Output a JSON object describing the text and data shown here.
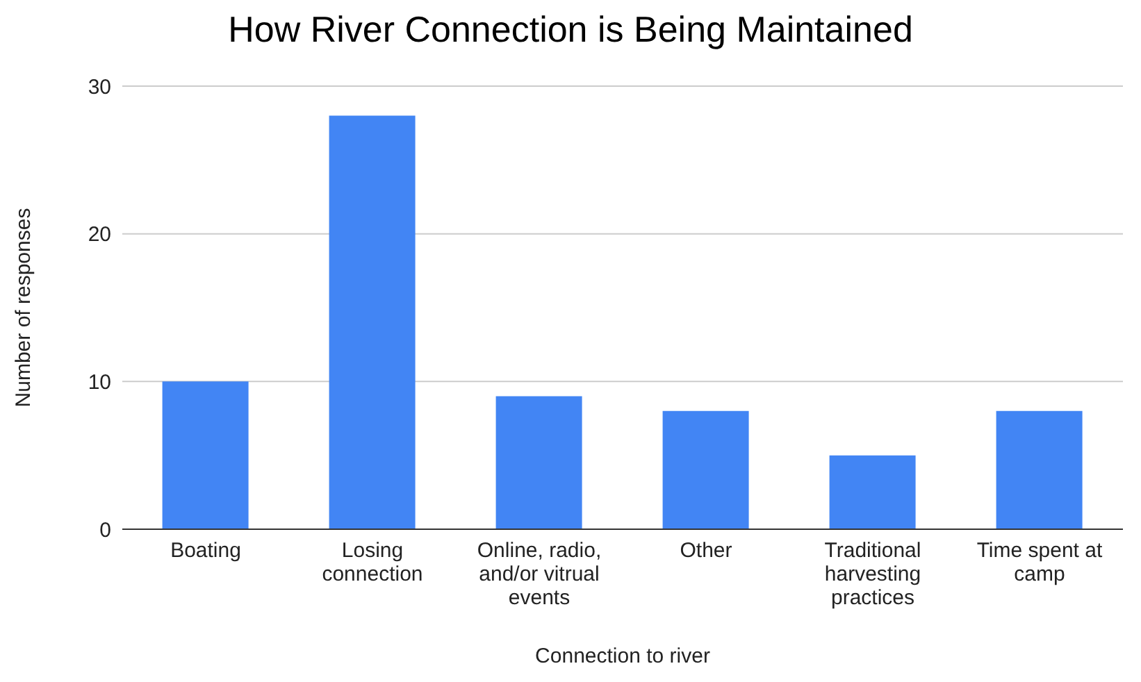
{
  "chart_data": {
    "type": "bar",
    "title": "How River Connection is Being Maintained",
    "xlabel": "Connection to river",
    "ylabel": "Number of responses",
    "categories": [
      "Boating",
      "Losing connection",
      "Online, radio, and/or vitrual events",
      "Other",
      "Traditional harvesting practices",
      "Time spent at camp"
    ],
    "values": [
      10,
      28,
      9,
      8,
      5,
      8
    ],
    "color": "#4285f4",
    "ylim": [
      0,
      30
    ],
    "yticks": [
      0,
      10,
      20,
      30
    ],
    "grid": "y",
    "legend": false
  }
}
